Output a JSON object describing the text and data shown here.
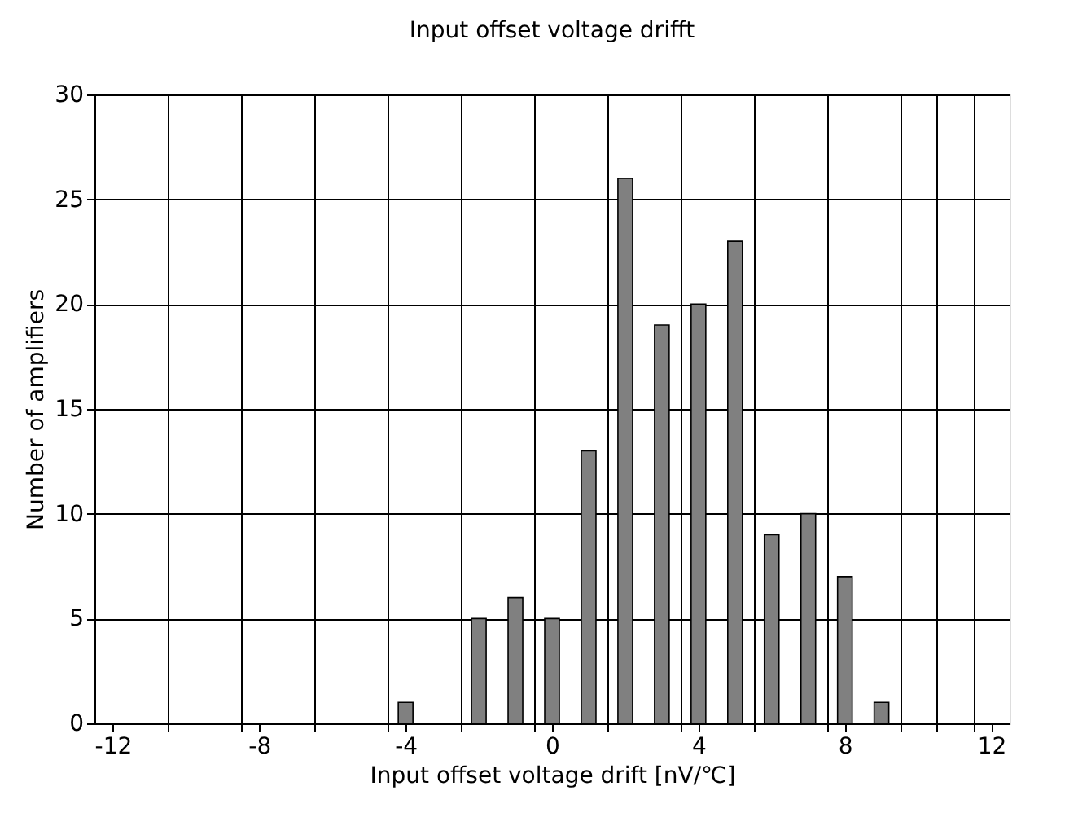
{
  "chart_data": {
    "type": "bar",
    "title": "Input offset voltage drifft",
    "xlabel": "Input offset voltage drift [nV/℃]",
    "ylabel": "Number of amplifiers",
    "x": [
      -4,
      -2,
      -1,
      0,
      1,
      2,
      3,
      4,
      5,
      6,
      7,
      8,
      9
    ],
    "series": [
      {
        "color": "#808080",
        "values": [
          1,
          5,
          6,
          5,
          13,
          26,
          19,
          20,
          23,
          9,
          10,
          7,
          1
        ]
      }
    ],
    "xlim": [
      -12.5,
      12.5
    ],
    "xticks": [
      -12,
      {
        "value": -10.5,
        "label": null
      },
      -8,
      {
        "value": -6.5,
        "label": null
      },
      {
        "value": -4.5,
        "label": null
      },
      -4,
      {
        "value": -2.5,
        "label": null
      },
      {
        "value": -0.5,
        "label": null
      },
      0,
      {
        "value": 1.5,
        "label": null
      },
      {
        "value": 3.5,
        "label": null
      },
      4,
      {
        "value": 5.5,
        "label": null
      },
      {
        "value": 7.5,
        "label": null
      },
      8,
      {
        "value": 9.5,
        "label": null
      },
      {
        "value": 11.5,
        "label": null
      },
      12,
      {
        "value": -8.5,
        "label": null
      },
      {
        "value": 10.5,
        "label": null
      }
    ],
    "ylim": [
      0,
      30
    ],
    "yticks": [
      0,
      5,
      10,
      15,
      20,
      25,
      30
    ],
    "grid": true
  }
}
